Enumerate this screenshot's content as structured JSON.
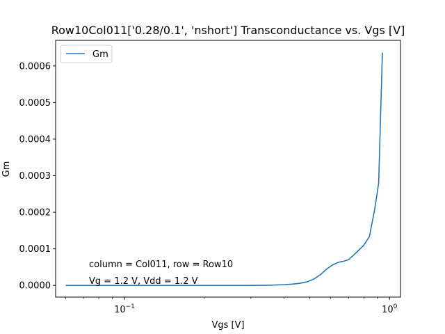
{
  "chart_data": {
    "type": "line",
    "title": "Row10Col011['0.28/0.1', 'nshort'] Transconductance vs. Vgs [V]",
    "xlabel": "Vgs [V]",
    "ylabel": "Gm",
    "xscale": "log",
    "xlim": [
      0.055,
      1.1
    ],
    "ylim": [
      -3.2e-05,
      0.00067
    ],
    "x_ticks": [
      {
        "value": 0.1,
        "base": "10",
        "exp": "−1"
      },
      {
        "value": 1.0,
        "base": "10",
        "exp": "0"
      }
    ],
    "y_ticks": [
      {
        "value": 0.0,
        "label": "0.0000"
      },
      {
        "value": 0.0001,
        "label": "0.0001"
      },
      {
        "value": 0.0002,
        "label": "0.0002"
      },
      {
        "value": 0.0003,
        "label": "0.0003"
      },
      {
        "value": 0.0004,
        "label": "0.0004"
      },
      {
        "value": 0.0005,
        "label": "0.0005"
      },
      {
        "value": 0.0006,
        "label": "0.0006"
      }
    ],
    "legend": {
      "position": "top-left"
    },
    "annotations": [
      "column = Col011, row = Row10",
      "Vg = 1.2 V, Vdd = 1.2 V"
    ],
    "grid": false,
    "series": [
      {
        "name": "Gm",
        "color": "#1f77b4",
        "x": [
          0.06,
          0.08,
          0.1,
          0.15,
          0.2,
          0.25,
          0.3,
          0.35,
          0.4,
          0.43,
          0.46,
          0.49,
          0.52,
          0.55,
          0.58,
          0.61,
          0.64,
          0.67,
          0.7,
          0.75,
          0.8,
          0.84,
          0.88,
          0.91,
          0.94
        ],
        "y": [
          0.0,
          0.0,
          0.0,
          0.0,
          0.0,
          0.0,
          0.0,
          5e-07,
          2e-06,
          3.5e-06,
          6e-06,
          1e-05,
          1.8e-05,
          3e-05,
          4.5e-05,
          5.6e-05,
          6.3e-05,
          6.6e-05,
          7e-05,
          9e-05,
          0.00011,
          0.000134,
          0.00021,
          0.00028,
          0.000637
        ]
      }
    ]
  }
}
